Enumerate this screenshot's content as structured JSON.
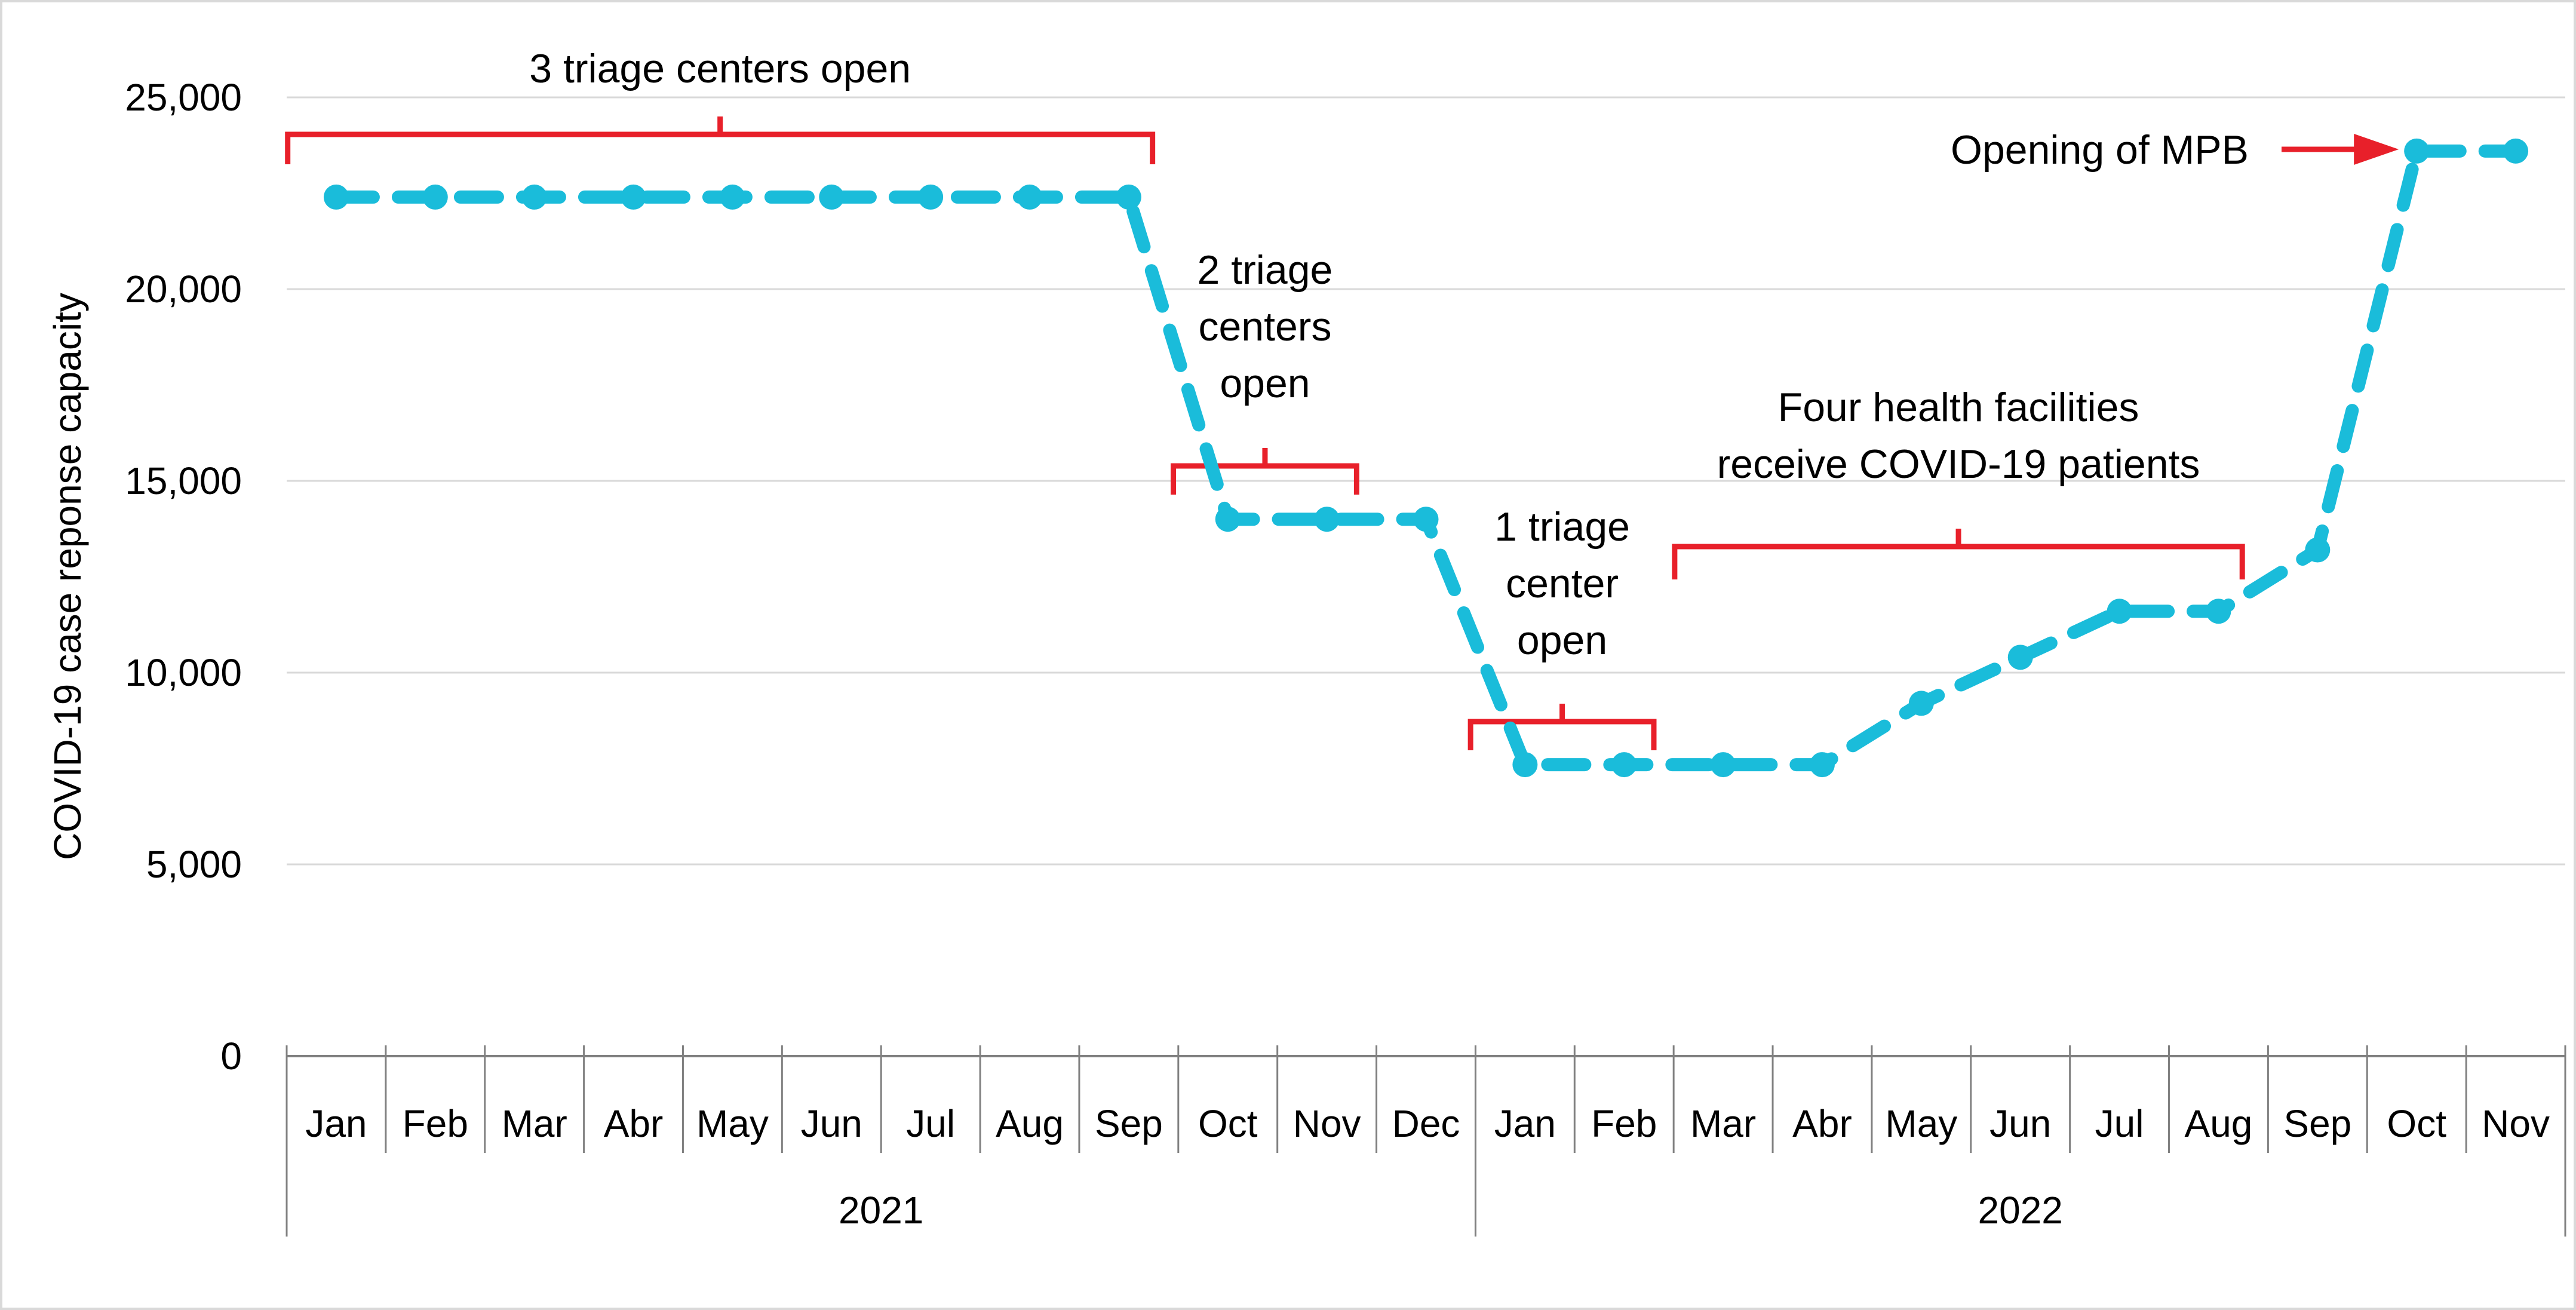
{
  "chart_data": {
    "type": "line",
    "title": "",
    "xlabel": "",
    "ylabel": "COVID-19 case reponse capacity",
    "ylim": [
      0,
      25000
    ],
    "yticks": [
      "0",
      "5,000",
      "10,000",
      "15,000",
      "20,000",
      "25,000"
    ],
    "grid": true,
    "legend": "none",
    "categories": [
      "Jan",
      "Feb",
      "Mar",
      "Abr",
      "May",
      "Jun",
      "Jul",
      "Aug",
      "Sep",
      "Oct",
      "Nov",
      "Dec",
      "Jan",
      "Feb",
      "Mar",
      "Abr",
      "May",
      "Jun",
      "Jul",
      "Aug",
      "Sep",
      "Oct",
      "Nov"
    ],
    "years": [
      {
        "label": "2021",
        "start": 0,
        "end": 11
      },
      {
        "label": "2022",
        "start": 12,
        "end": 22
      }
    ],
    "series": [
      {
        "values": [
          22400,
          22400,
          22400,
          22400,
          22400,
          22400,
          22400,
          22400,
          22400,
          14000,
          14000,
          14000,
          7600,
          7600,
          7600,
          7600,
          9200,
          10400,
          11600,
          11600,
          13200,
          23600,
          23600
        ]
      }
    ],
    "annotations": [
      {
        "text_lines": [
          "3 triage centers open"
        ],
        "bracket_from": 0,
        "bracket_to": 8
      },
      {
        "text_lines": [
          "2 triage",
          "centers",
          "open"
        ],
        "bracket_from": 9,
        "bracket_to": 10
      },
      {
        "text_lines": [
          "1 triage",
          "center",
          "open"
        ],
        "bracket_from": 12,
        "bracket_to": 13
      },
      {
        "text_lines": [
          "Four health facilities",
          "receive COVID-19 patients"
        ],
        "bracket_from": 14,
        "bracket_to": 19
      },
      {
        "text_lines": [
          "Opening of MPB"
        ],
        "arrow_to": 21
      }
    ],
    "colors": {
      "line": "#1ABCDA",
      "annotation": "#E8202A",
      "grid": "#D9D9D9",
      "axis": "#808080",
      "text": "#000000"
    }
  }
}
